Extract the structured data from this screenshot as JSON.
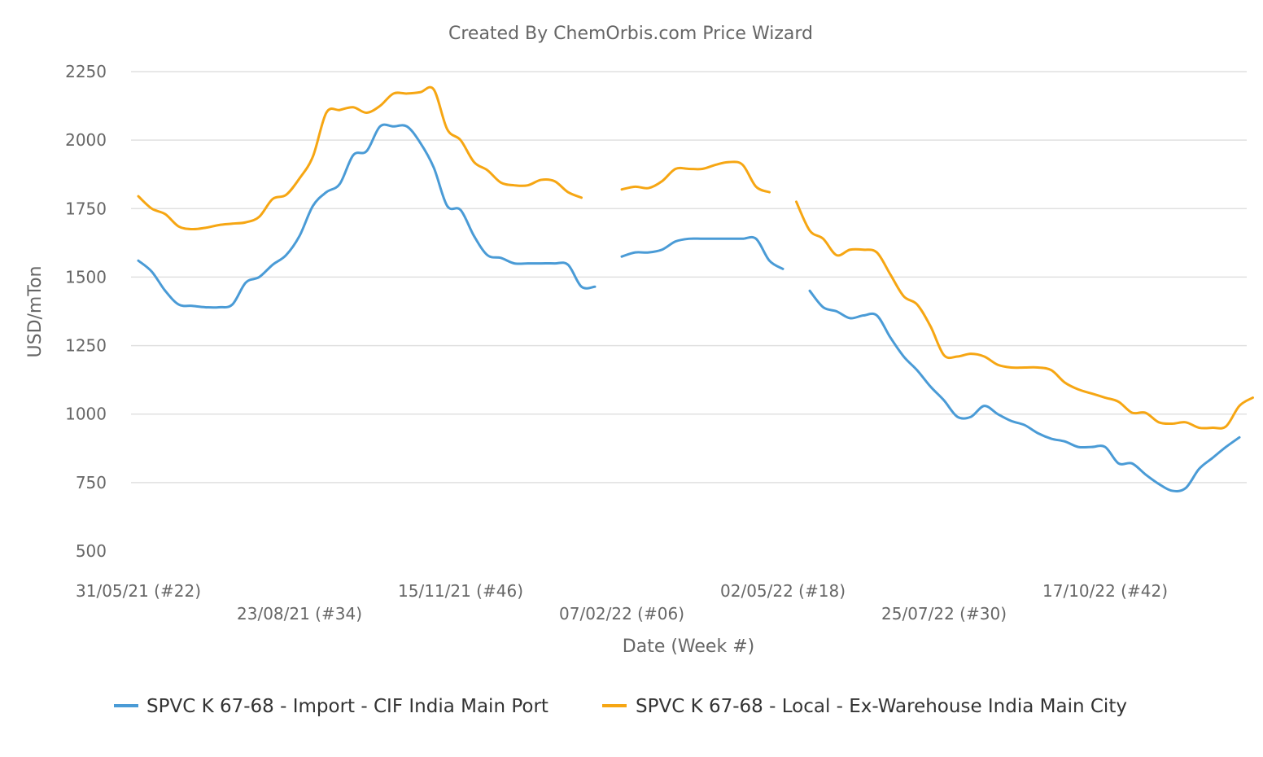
{
  "chart_data": {
    "type": "line",
    "title": "Created By ChemOrbis.com Price Wizard",
    "xlabel": "Date (Week #)",
    "ylabel": "USD/mTon",
    "ylim": [
      500,
      2250
    ],
    "yticks": [
      500,
      750,
      1000,
      1250,
      1500,
      1750,
      2000,
      2250
    ],
    "x_unit": "week",
    "x_start": "31/05/21 (#22)",
    "x_tick_labels": [
      {
        "week": 0,
        "label": "31/05/21 (#22)"
      },
      {
        "week": 12,
        "label": "23/08/21 (#34)"
      },
      {
        "week": 24,
        "label": "15/11/21 (#46)"
      },
      {
        "week": 36,
        "label": "07/02/22 (#06)"
      },
      {
        "week": 48,
        "label": "02/05/22 (#18)"
      },
      {
        "week": 60,
        "label": "25/07/22 (#30)"
      },
      {
        "week": 72,
        "label": "17/10/22 (#42)"
      }
    ],
    "grid": true,
    "legend_position": "bottom",
    "series": [
      {
        "name": "SPVC K 67-68 - Import - CIF India Main Port",
        "color": "#4a9bd6",
        "segments": [
          [
            [
              0,
              1560
            ],
            [
              1,
              1520
            ],
            [
              2,
              1450
            ],
            [
              3,
              1400
            ],
            [
              4,
              1395
            ],
            [
              5,
              1390
            ],
            [
              6,
              1390
            ],
            [
              7,
              1400
            ],
            [
              8,
              1480
            ],
            [
              9,
              1500
            ],
            [
              10,
              1545
            ],
            [
              11,
              1580
            ],
            [
              12,
              1650
            ],
            [
              13,
              1760
            ],
            [
              14,
              1810
            ],
            [
              15,
              1840
            ],
            [
              16,
              1945
            ],
            [
              17,
              1960
            ],
            [
              18,
              2050
            ],
            [
              19,
              2050
            ],
            [
              20,
              2050
            ],
            [
              21,
              1990
            ],
            [
              22,
              1900
            ],
            [
              23,
              1760
            ],
            [
              24,
              1745
            ],
            [
              25,
              1650
            ],
            [
              26,
              1580
            ],
            [
              27,
              1570
            ],
            [
              28,
              1550
            ],
            [
              29,
              1550
            ],
            [
              30,
              1550
            ],
            [
              31,
              1550
            ],
            [
              32,
              1545
            ],
            [
              33,
              1465
            ],
            [
              34,
              1465
            ]
          ],
          [
            [
              36,
              1575
            ],
            [
              37,
              1590
            ],
            [
              38,
              1590
            ],
            [
              39,
              1600
            ],
            [
              40,
              1630
            ],
            [
              41,
              1640
            ],
            [
              42,
              1640
            ],
            [
              43,
              1640
            ],
            [
              44,
              1640
            ],
            [
              45,
              1640
            ],
            [
              46,
              1640
            ],
            [
              47,
              1560
            ],
            [
              48,
              1530
            ]
          ],
          [
            [
              50,
              1450
            ],
            [
              51,
              1390
            ],
            [
              52,
              1375
            ],
            [
              53,
              1350
            ],
            [
              54,
              1360
            ],
            [
              55,
              1360
            ],
            [
              56,
              1280
            ],
            [
              57,
              1210
            ],
            [
              58,
              1160
            ],
            [
              59,
              1100
            ],
            [
              60,
              1050
            ],
            [
              61,
              990
            ],
            [
              62,
              990
            ],
            [
              63,
              1030
            ],
            [
              64,
              1000
            ],
            [
              65,
              975
            ],
            [
              66,
              960
            ],
            [
              67,
              930
            ],
            [
              68,
              910
            ],
            [
              69,
              900
            ],
            [
              70,
              880
            ],
            [
              71,
              880
            ],
            [
              72,
              880
            ],
            [
              73,
              820
            ],
            [
              74,
              820
            ],
            [
              75,
              780
            ],
            [
              76,
              745
            ],
            [
              77,
              720
            ],
            [
              78,
              730
            ],
            [
              79,
              800
            ],
            [
              80,
              840
            ],
            [
              81,
              880
            ],
            [
              82,
              915
            ]
          ]
        ]
      },
      {
        "name": "SPVC K 67-68 - Local - Ex-Warehouse India Main City",
        "color": "#f6a613",
        "segments": [
          [
            [
              0,
              1795
            ],
            [
              1,
              1750
            ],
            [
              2,
              1730
            ],
            [
              3,
              1685
            ],
            [
              4,
              1675
            ],
            [
              5,
              1680
            ],
            [
              6,
              1690
            ],
            [
              7,
              1695
            ],
            [
              8,
              1700
            ],
            [
              9,
              1720
            ],
            [
              10,
              1785
            ],
            [
              11,
              1800
            ],
            [
              12,
              1860
            ],
            [
              13,
              1940
            ],
            [
              14,
              2100
            ],
            [
              15,
              2110
            ],
            [
              16,
              2120
            ],
            [
              17,
              2100
            ],
            [
              18,
              2125
            ],
            [
              19,
              2170
            ],
            [
              20,
              2170
            ],
            [
              21,
              2175
            ],
            [
              22,
              2185
            ],
            [
              23,
              2040
            ],
            [
              24,
              2000
            ],
            [
              25,
              1920
            ],
            [
              26,
              1890
            ],
            [
              27,
              1845
            ],
            [
              28,
              1835
            ],
            [
              29,
              1835
            ],
            [
              30,
              1855
            ],
            [
              31,
              1850
            ],
            [
              32,
              1810
            ],
            [
              33,
              1790
            ]
          ],
          [
            [
              36,
              1820
            ],
            [
              37,
              1830
            ],
            [
              38,
              1825
            ],
            [
              39,
              1850
            ],
            [
              40,
              1895
            ],
            [
              41,
              1895
            ],
            [
              42,
              1895
            ],
            [
              43,
              1910
            ],
            [
              44,
              1920
            ],
            [
              45,
              1910
            ],
            [
              46,
              1830
            ],
            [
              47,
              1810
            ]
          ],
          [
            [
              49,
              1775
            ],
            [
              50,
              1670
            ],
            [
              51,
              1640
            ],
            [
              52,
              1580
            ],
            [
              53,
              1600
            ],
            [
              54,
              1600
            ],
            [
              55,
              1590
            ],
            [
              56,
              1510
            ],
            [
              57,
              1430
            ],
            [
              58,
              1400
            ],
            [
              59,
              1320
            ],
            [
              60,
              1215
            ],
            [
              61,
              1210
            ],
            [
              62,
              1220
            ],
            [
              63,
              1210
            ],
            [
              64,
              1180
            ],
            [
              65,
              1170
            ],
            [
              66,
              1170
            ],
            [
              67,
              1170
            ],
            [
              68,
              1160
            ],
            [
              69,
              1115
            ],
            [
              70,
              1090
            ],
            [
              71,
              1075
            ],
            [
              72,
              1060
            ],
            [
              73,
              1045
            ],
            [
              74,
              1005
            ],
            [
              75,
              1005
            ],
            [
              76,
              970
            ],
            [
              77,
              965
            ],
            [
              78,
              970
            ],
            [
              79,
              950
            ],
            [
              80,
              950
            ],
            [
              81,
              955
            ],
            [
              82,
              1030
            ],
            [
              83,
              1060
            ]
          ]
        ]
      }
    ]
  }
}
